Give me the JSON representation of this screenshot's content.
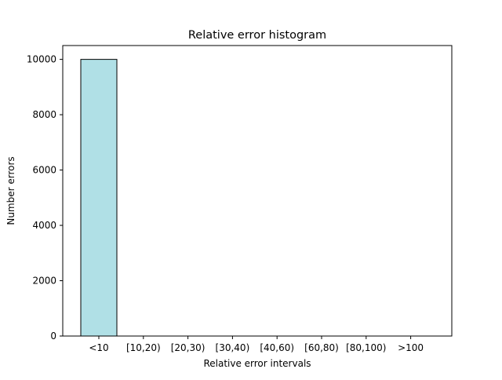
{
  "chart_data": {
    "type": "bar",
    "title": "Relative error histogram",
    "xlabel": "Relative error intervals",
    "ylabel": "Number errors",
    "categories": [
      "<10",
      "[10,20)",
      "[20,30)",
      "[30,40)",
      "[40,60)",
      "[60,80)",
      "[80,100)",
      ">100"
    ],
    "values": [
      10000,
      0,
      0,
      0,
      0,
      0,
      0,
      0
    ],
    "ylim": [
      0,
      10500
    ],
    "yticks": [
      0,
      2000,
      4000,
      6000,
      8000,
      10000
    ],
    "grid": false,
    "bar_color": "#b0e0e6",
    "bar_edge_color": "#000000"
  }
}
